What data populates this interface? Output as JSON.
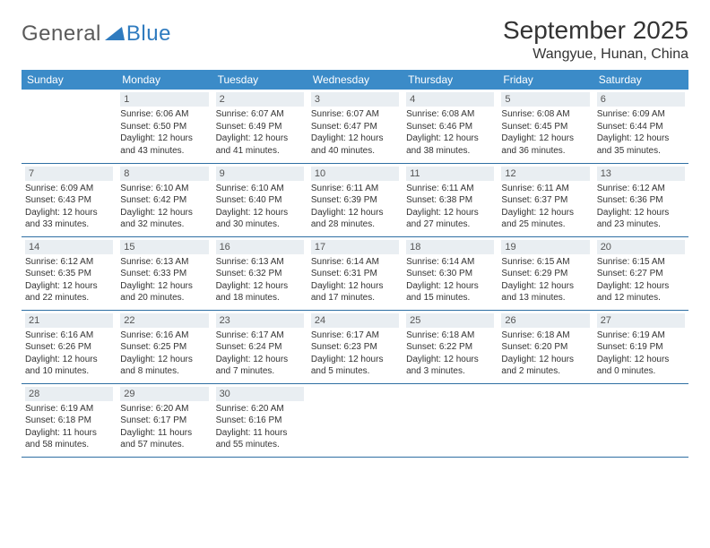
{
  "logo": {
    "part1": "General",
    "part2": "Blue"
  },
  "title": "September 2025",
  "location": "Wangyue, Hunan, China",
  "colors": {
    "header_bg": "#3b8bc8",
    "header_text": "#ffffff",
    "daynum_bg": "#e9eef2",
    "row_border": "#2f6fa3",
    "logo_gray": "#5a5a5a",
    "logo_blue": "#2f7bbf"
  },
  "typography": {
    "title_fontsize": 28,
    "location_fontsize": 16,
    "weekday_fontsize": 12,
    "cell_fontsize": 10
  },
  "weekdays": [
    "Sunday",
    "Monday",
    "Tuesday",
    "Wednesday",
    "Thursday",
    "Friday",
    "Saturday"
  ],
  "weeks": [
    [
      null,
      {
        "n": "1",
        "sr": "Sunrise: 6:06 AM",
        "ss": "Sunset: 6:50 PM",
        "d1": "Daylight: 12 hours",
        "d2": "and 43 minutes."
      },
      {
        "n": "2",
        "sr": "Sunrise: 6:07 AM",
        "ss": "Sunset: 6:49 PM",
        "d1": "Daylight: 12 hours",
        "d2": "and 41 minutes."
      },
      {
        "n": "3",
        "sr": "Sunrise: 6:07 AM",
        "ss": "Sunset: 6:47 PM",
        "d1": "Daylight: 12 hours",
        "d2": "and 40 minutes."
      },
      {
        "n": "4",
        "sr": "Sunrise: 6:08 AM",
        "ss": "Sunset: 6:46 PM",
        "d1": "Daylight: 12 hours",
        "d2": "and 38 minutes."
      },
      {
        "n": "5",
        "sr": "Sunrise: 6:08 AM",
        "ss": "Sunset: 6:45 PM",
        "d1": "Daylight: 12 hours",
        "d2": "and 36 minutes."
      },
      {
        "n": "6",
        "sr": "Sunrise: 6:09 AM",
        "ss": "Sunset: 6:44 PM",
        "d1": "Daylight: 12 hours",
        "d2": "and 35 minutes."
      }
    ],
    [
      {
        "n": "7",
        "sr": "Sunrise: 6:09 AM",
        "ss": "Sunset: 6:43 PM",
        "d1": "Daylight: 12 hours",
        "d2": "and 33 minutes."
      },
      {
        "n": "8",
        "sr": "Sunrise: 6:10 AM",
        "ss": "Sunset: 6:42 PM",
        "d1": "Daylight: 12 hours",
        "d2": "and 32 minutes."
      },
      {
        "n": "9",
        "sr": "Sunrise: 6:10 AM",
        "ss": "Sunset: 6:40 PM",
        "d1": "Daylight: 12 hours",
        "d2": "and 30 minutes."
      },
      {
        "n": "10",
        "sr": "Sunrise: 6:11 AM",
        "ss": "Sunset: 6:39 PM",
        "d1": "Daylight: 12 hours",
        "d2": "and 28 minutes."
      },
      {
        "n": "11",
        "sr": "Sunrise: 6:11 AM",
        "ss": "Sunset: 6:38 PM",
        "d1": "Daylight: 12 hours",
        "d2": "and 27 minutes."
      },
      {
        "n": "12",
        "sr": "Sunrise: 6:11 AM",
        "ss": "Sunset: 6:37 PM",
        "d1": "Daylight: 12 hours",
        "d2": "and 25 minutes."
      },
      {
        "n": "13",
        "sr": "Sunrise: 6:12 AM",
        "ss": "Sunset: 6:36 PM",
        "d1": "Daylight: 12 hours",
        "d2": "and 23 minutes."
      }
    ],
    [
      {
        "n": "14",
        "sr": "Sunrise: 6:12 AM",
        "ss": "Sunset: 6:35 PM",
        "d1": "Daylight: 12 hours",
        "d2": "and 22 minutes."
      },
      {
        "n": "15",
        "sr": "Sunrise: 6:13 AM",
        "ss": "Sunset: 6:33 PM",
        "d1": "Daylight: 12 hours",
        "d2": "and 20 minutes."
      },
      {
        "n": "16",
        "sr": "Sunrise: 6:13 AM",
        "ss": "Sunset: 6:32 PM",
        "d1": "Daylight: 12 hours",
        "d2": "and 18 minutes."
      },
      {
        "n": "17",
        "sr": "Sunrise: 6:14 AM",
        "ss": "Sunset: 6:31 PM",
        "d1": "Daylight: 12 hours",
        "d2": "and 17 minutes."
      },
      {
        "n": "18",
        "sr": "Sunrise: 6:14 AM",
        "ss": "Sunset: 6:30 PM",
        "d1": "Daylight: 12 hours",
        "d2": "and 15 minutes."
      },
      {
        "n": "19",
        "sr": "Sunrise: 6:15 AM",
        "ss": "Sunset: 6:29 PM",
        "d1": "Daylight: 12 hours",
        "d2": "and 13 minutes."
      },
      {
        "n": "20",
        "sr": "Sunrise: 6:15 AM",
        "ss": "Sunset: 6:27 PM",
        "d1": "Daylight: 12 hours",
        "d2": "and 12 minutes."
      }
    ],
    [
      {
        "n": "21",
        "sr": "Sunrise: 6:16 AM",
        "ss": "Sunset: 6:26 PM",
        "d1": "Daylight: 12 hours",
        "d2": "and 10 minutes."
      },
      {
        "n": "22",
        "sr": "Sunrise: 6:16 AM",
        "ss": "Sunset: 6:25 PM",
        "d1": "Daylight: 12 hours",
        "d2": "and 8 minutes."
      },
      {
        "n": "23",
        "sr": "Sunrise: 6:17 AM",
        "ss": "Sunset: 6:24 PM",
        "d1": "Daylight: 12 hours",
        "d2": "and 7 minutes."
      },
      {
        "n": "24",
        "sr": "Sunrise: 6:17 AM",
        "ss": "Sunset: 6:23 PM",
        "d1": "Daylight: 12 hours",
        "d2": "and 5 minutes."
      },
      {
        "n": "25",
        "sr": "Sunrise: 6:18 AM",
        "ss": "Sunset: 6:22 PM",
        "d1": "Daylight: 12 hours",
        "d2": "and 3 minutes."
      },
      {
        "n": "26",
        "sr": "Sunrise: 6:18 AM",
        "ss": "Sunset: 6:20 PM",
        "d1": "Daylight: 12 hours",
        "d2": "and 2 minutes."
      },
      {
        "n": "27",
        "sr": "Sunrise: 6:19 AM",
        "ss": "Sunset: 6:19 PM",
        "d1": "Daylight: 12 hours",
        "d2": "and 0 minutes."
      }
    ],
    [
      {
        "n": "28",
        "sr": "Sunrise: 6:19 AM",
        "ss": "Sunset: 6:18 PM",
        "d1": "Daylight: 11 hours",
        "d2": "and 58 minutes."
      },
      {
        "n": "29",
        "sr": "Sunrise: 6:20 AM",
        "ss": "Sunset: 6:17 PM",
        "d1": "Daylight: 11 hours",
        "d2": "and 57 minutes."
      },
      {
        "n": "30",
        "sr": "Sunrise: 6:20 AM",
        "ss": "Sunset: 6:16 PM",
        "d1": "Daylight: 11 hours",
        "d2": "and 55 minutes."
      },
      null,
      null,
      null,
      null
    ]
  ]
}
